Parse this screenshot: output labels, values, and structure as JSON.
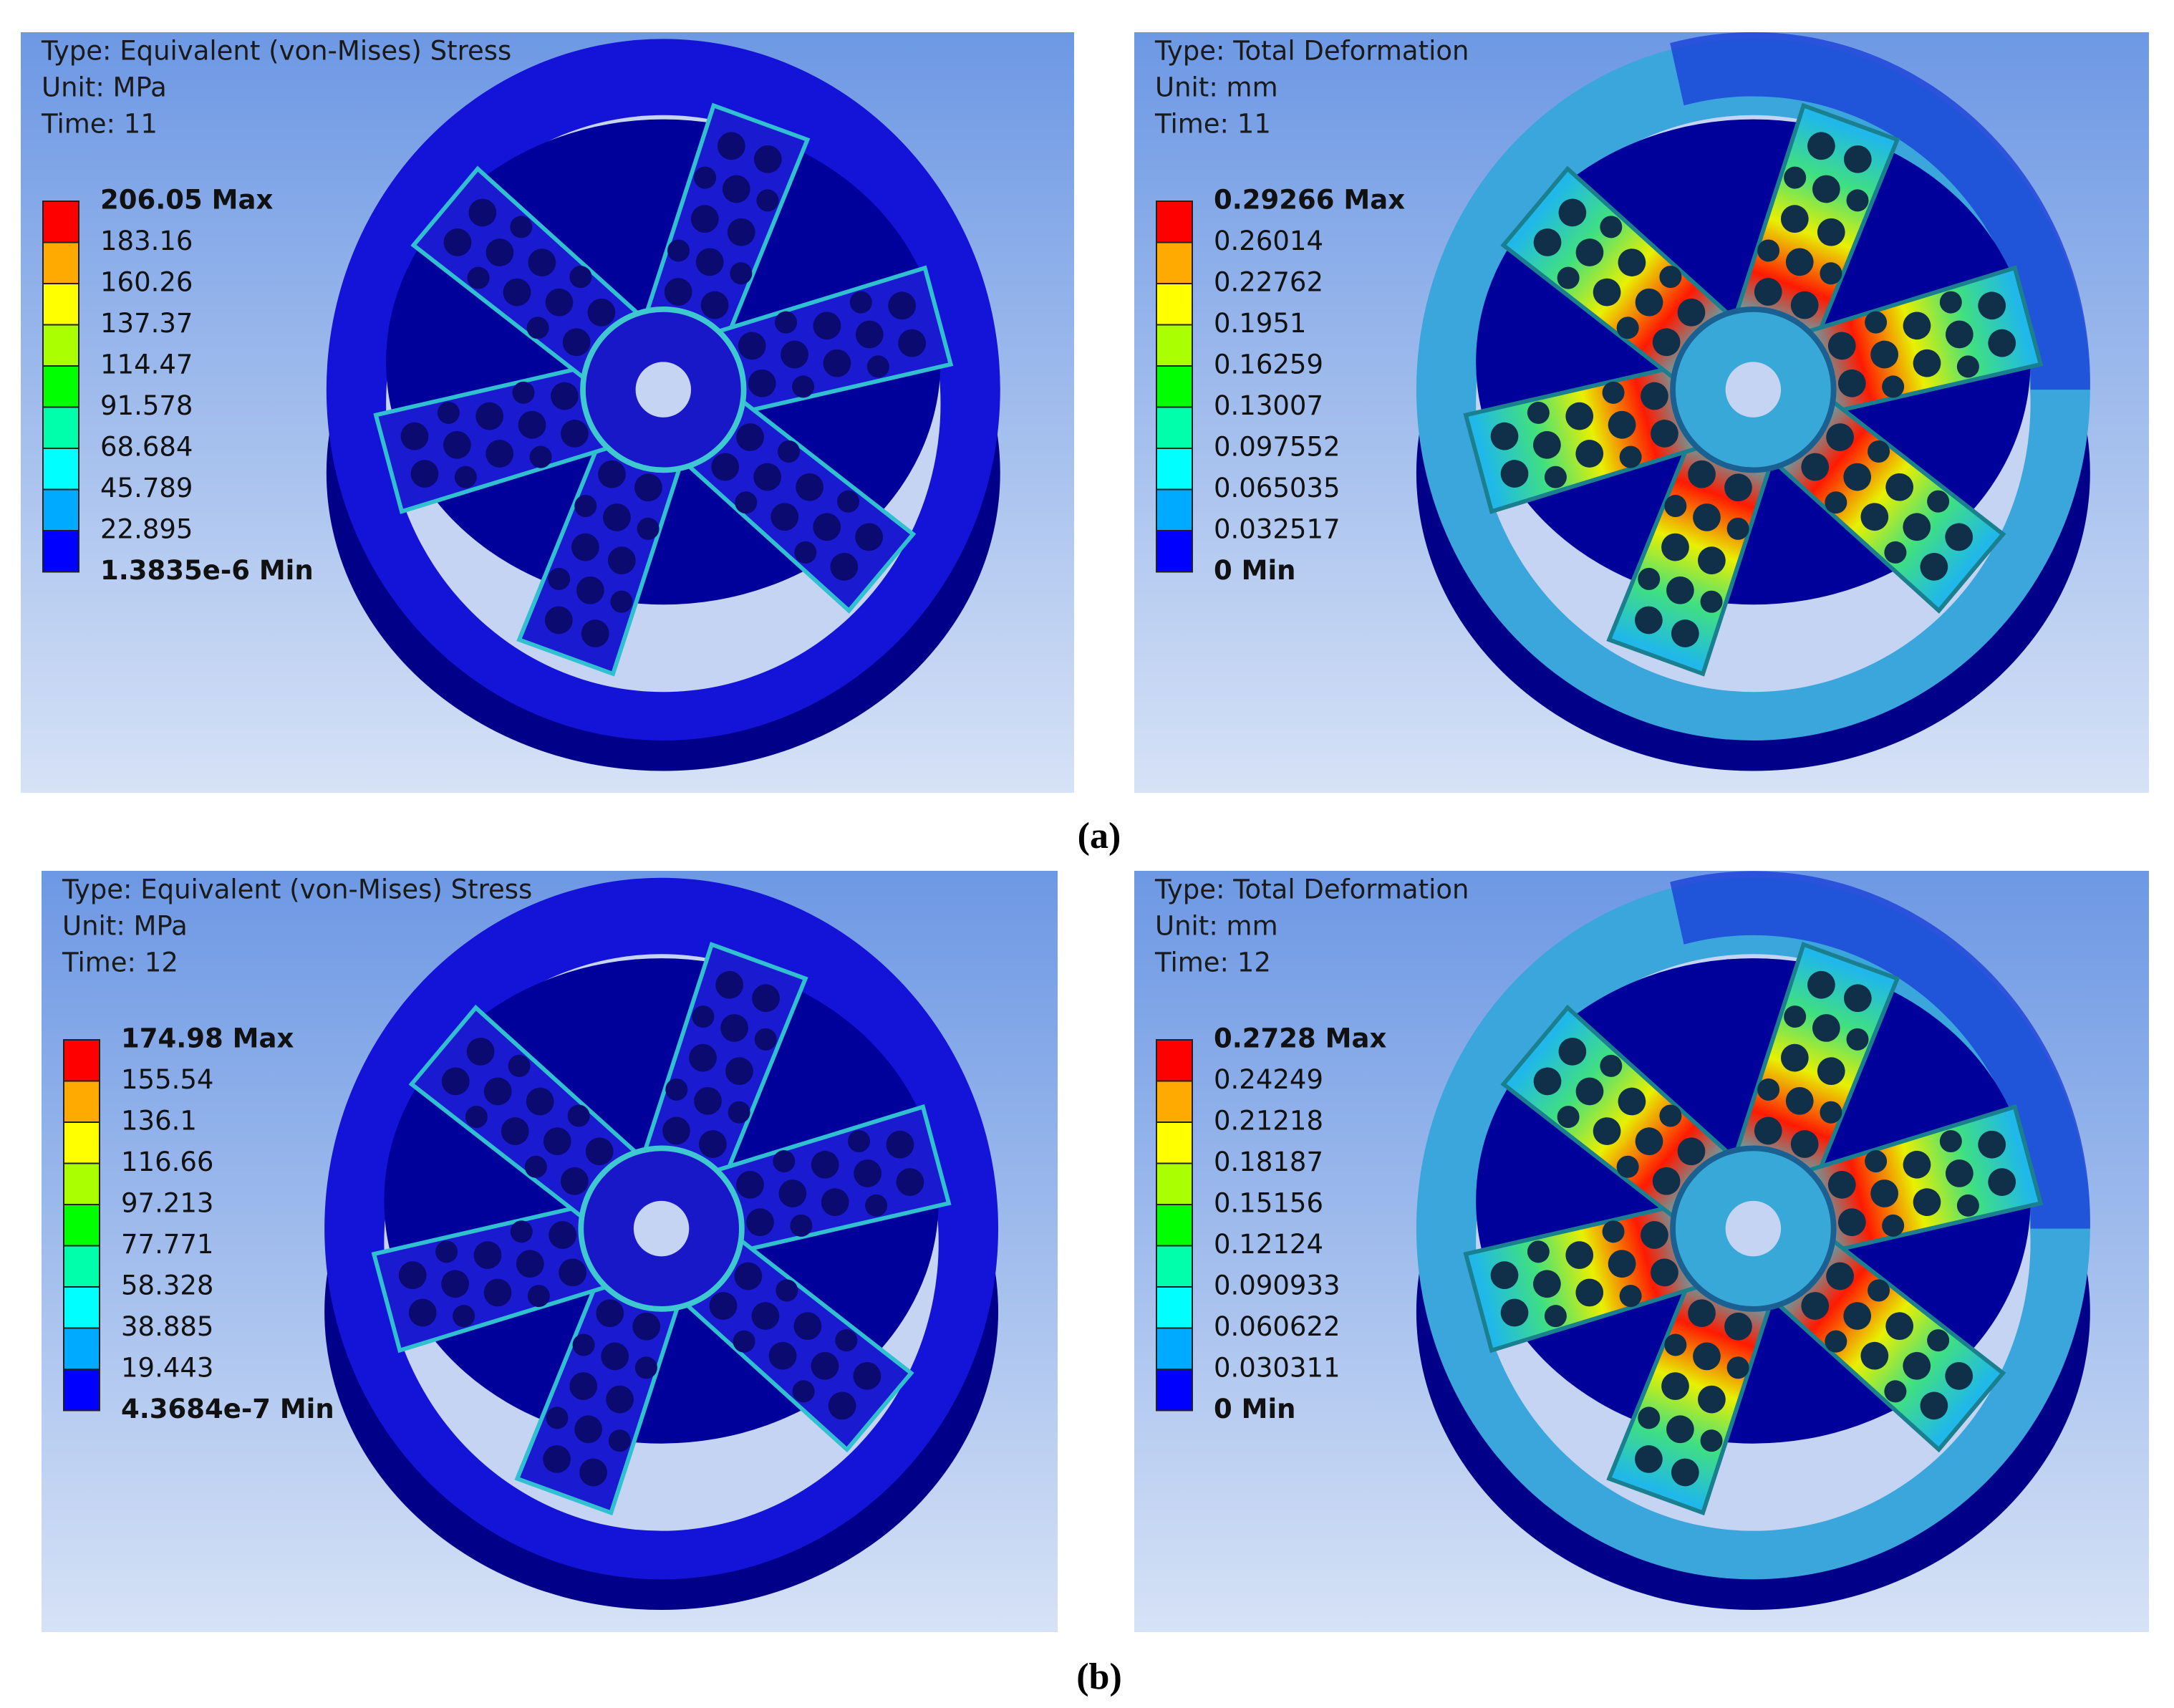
{
  "panels": [
    {
      "header": [
        "Type: Equivalent (von-Mises) Stress",
        "Unit: MPa",
        "Time: 11"
      ],
      "legend": [
        "206.05 Max",
        "183.16",
        "160.26",
        "137.37",
        "114.47",
        "91.578",
        "68.684",
        "45.789",
        "22.895",
        "1.3835e-6 Min"
      ]
    },
    {
      "header": [
        "Type: Total Deformation",
        "Unit: mm",
        "Time: 11"
      ],
      "legend": [
        "0.29266 Max",
        "0.26014",
        "0.22762",
        "0.1951",
        "0.16259",
        "0.13007",
        "0.097552",
        "0.065035",
        "0.032517",
        "0 Min"
      ]
    },
    {
      "header": [
        "Type: Equivalent (von-Mises) Stress",
        "Unit: MPa",
        "Time: 12"
      ],
      "legend": [
        "174.98 Max",
        "155.54",
        "136.1",
        "116.66",
        "97.213",
        "77.771",
        "58.328",
        "38.885",
        "19.443",
        "4.3684e-7 Min"
      ]
    },
    {
      "header": [
        "Type: Total Deformation",
        "Unit: mm",
        "Time: 12"
      ],
      "legend": [
        "0.2728 Max",
        "0.24249",
        "0.21218",
        "0.18187",
        "0.15156",
        "0.12124",
        "0.090933",
        "0.060622",
        "0.030311",
        "0 Min"
      ]
    }
  ],
  "captions": [
    "(a)",
    "(b)"
  ],
  "legend_colors": [
    "#ff0000",
    "#ffaa00",
    "#ffff00",
    "#aaff00",
    "#00ff00",
    "#00ffaa",
    "#00ffff",
    "#00aaff",
    "#0000ff"
  ]
}
